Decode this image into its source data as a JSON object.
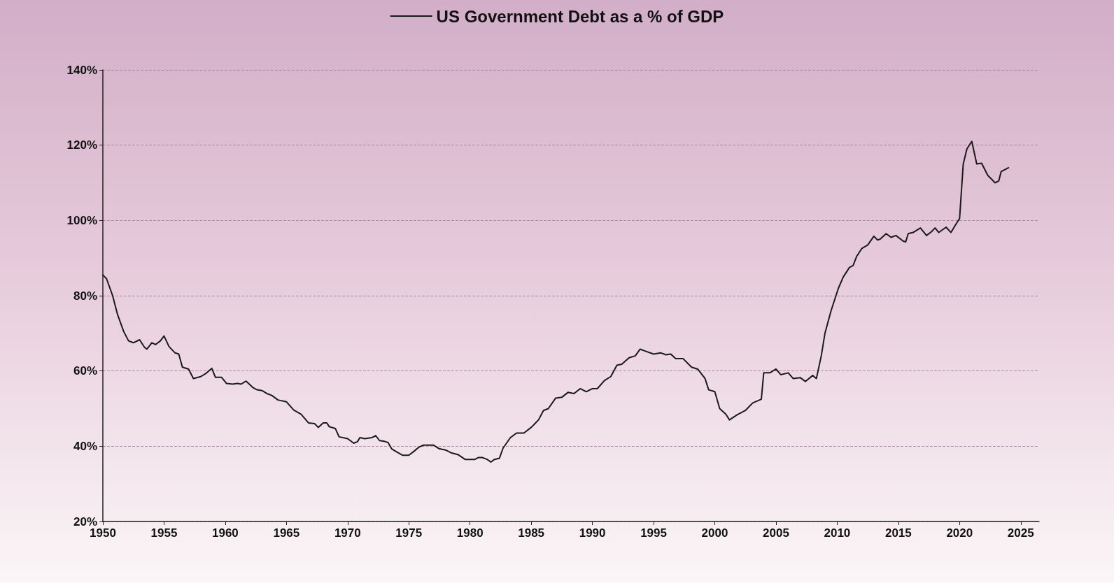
{
  "chart_data": {
    "type": "line",
    "legend": "top",
    "grid": "y",
    "marker": "none",
    "line_style": "solid",
    "xlim": [
      1950,
      2026.5
    ],
    "xticks": [
      1950,
      1955,
      1960,
      1965,
      1970,
      1975,
      1980,
      1985,
      1990,
      1995,
      2000,
      2005,
      2010,
      2015,
      2020,
      2025
    ],
    "ylim": [
      20,
      140
    ],
    "yticks": [
      {
        "value": 20,
        "label": "20%"
      },
      {
        "value": 40,
        "label": "40%"
      },
      {
        "value": 60,
        "label": "60%"
      },
      {
        "value": 80,
        "label": "80%"
      },
      {
        "value": 100,
        "label": "100%"
      },
      {
        "value": 120,
        "label": "120%"
      },
      {
        "value": 140,
        "label": "140%"
      }
    ],
    "series": [
      {
        "name": "US Government Debt as a % of GDP",
        "color": "#1a1a1a",
        "x": [
          1950.0,
          1950.3,
          1950.8,
          1951.2,
          1951.7,
          1952.1,
          1952.5,
          1953.0,
          1953.4,
          1953.6,
          1954.0,
          1954.3,
          1954.7,
          1955.0,
          1955.4,
          1955.9,
          1956.2,
          1956.5,
          1957.0,
          1957.4,
          1958.0,
          1958.4,
          1958.9,
          1959.2,
          1959.7,
          1960.1,
          1960.6,
          1961.0,
          1961.3,
          1961.7,
          1962.3,
          1962.6,
          1963.0,
          1963.4,
          1963.8,
          1964.3,
          1965.0,
          1965.6,
          1966.2,
          1966.8,
          1967.3,
          1967.6,
          1968.0,
          1968.3,
          1968.5,
          1969.0,
          1969.3,
          1970.0,
          1970.5,
          1970.8,
          1971.0,
          1971.4,
          1972.0,
          1972.3,
          1972.6,
          1973.0,
          1973.3,
          1973.6,
          1974.0,
          1974.5,
          1975.0,
          1975.4,
          1975.8,
          1976.2,
          1977.0,
          1977.5,
          1978.0,
          1978.5,
          1979.0,
          1979.6,
          1980.0,
          1980.4,
          1980.7,
          1981.0,
          1981.4,
          1981.7,
          1982.0,
          1982.4,
          1982.7,
          1983.3,
          1983.8,
          1984.4,
          1985.0,
          1985.6,
          1986.0,
          1986.4,
          1987.0,
          1987.5,
          1988.0,
          1988.5,
          1989.0,
          1989.5,
          1990.0,
          1990.4,
          1991.0,
          1991.5,
          1992.0,
          1992.4,
          1993.0,
          1993.5,
          1993.9,
          1994.3,
          1995.0,
          1995.6,
          1996.0,
          1996.4,
          1996.8,
          1997.4,
          1998.1,
          1998.6,
          1999.2,
          1999.5,
          2000.0,
          2000.4,
          2000.9,
          2001.2,
          2001.8,
          2002.5,
          2003.1,
          2003.8,
          2004.0,
          2004.5,
          2005.0,
          2005.4,
          2006.0,
          2006.4,
          2007.0,
          2007.4,
          2008.0,
          2008.3,
          2008.7,
          2009.0,
          2009.5,
          2010.1,
          2010.5,
          2011.0,
          2011.3,
          2011.6,
          2012.0,
          2012.5,
          2013.0,
          2013.3,
          2013.5,
          2014.0,
          2014.4,
          2014.8,
          2015.4,
          2015.6,
          2015.8,
          2016.2,
          2016.8,
          2017.3,
          2017.7,
          2018.0,
          2018.3,
          2018.9,
          2019.3,
          2019.7,
          2020.0,
          2020.3,
          2020.6,
          2021.0,
          2021.4,
          2021.8,
          2022.3,
          2022.9,
          2023.2,
          2023.4,
          2024.0
        ],
        "values": [
          85.5,
          84.5,
          80,
          75,
          70.5,
          68,
          67.5,
          68.3,
          66.3,
          65.8,
          67.5,
          67,
          68,
          69.3,
          66.5,
          64.8,
          64.5,
          61,
          60.5,
          58,
          58.5,
          59.3,
          60.7,
          58.3,
          58.3,
          56.7,
          56.5,
          56.7,
          56.5,
          57.3,
          55.5,
          55,
          54.8,
          54,
          53.5,
          52.3,
          51.8,
          49.6,
          48.5,
          46.2,
          46,
          45,
          46.2,
          46.2,
          45.2,
          44.7,
          42.5,
          42,
          40.8,
          41.2,
          42.3,
          42,
          42.3,
          42.8,
          41.5,
          41.3,
          41,
          39.3,
          38.5,
          37.6,
          37.6,
          38.6,
          39.7,
          40.3,
          40.3,
          39.3,
          39,
          38.2,
          37.8,
          36.5,
          36.5,
          36.5,
          37,
          37,
          36.5,
          35.8,
          36.5,
          36.8,
          39.5,
          42.3,
          43.5,
          43.5,
          45,
          47,
          49.5,
          50,
          52.8,
          53,
          54.3,
          54,
          55.3,
          54.5,
          55.3,
          55.3,
          57.5,
          58.5,
          61.5,
          61.8,
          63.5,
          64,
          65.8,
          65.3,
          64.5,
          64.8,
          64.3,
          64.5,
          63.3,
          63.3,
          61,
          60.5,
          58,
          55,
          54.5,
          50,
          48.5,
          47,
          48.3,
          49.5,
          51.5,
          52.5,
          59.5,
          59.5,
          60.5,
          59,
          59.5,
          58,
          58.2,
          57.2,
          58.8,
          58,
          64,
          70,
          76,
          82,
          85,
          87.5,
          88,
          90.5,
          92.5,
          93.5,
          95.8,
          94.8,
          95,
          96.5,
          95.5,
          96,
          94.5,
          94.3,
          96.5,
          96.8,
          98,
          96,
          97,
          98,
          96.8,
          98.2,
          96.8,
          99,
          100.5,
          115,
          119,
          121,
          115,
          115.2,
          112,
          110,
          110.5,
          113,
          114
        ]
      }
    ]
  }
}
